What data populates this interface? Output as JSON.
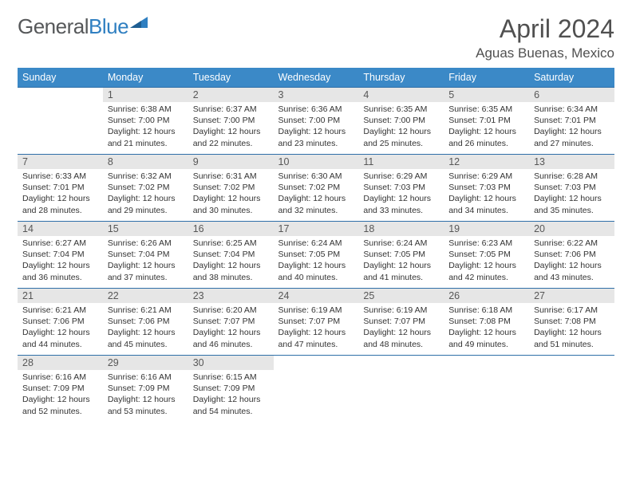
{
  "logo": {
    "text1": "General",
    "text2": "Blue",
    "mark_color": "#2f7fc1",
    "text1_color": "#56585a"
  },
  "title": "April 2024",
  "location": "Aguas Buenas, Mexico",
  "header_bg": "#3b89c7",
  "header_fg": "#ffffff",
  "daynum_bg": "#e6e6e6",
  "border_color": "#2f6fa8",
  "day_names": [
    "Sunday",
    "Monday",
    "Tuesday",
    "Wednesday",
    "Thursday",
    "Friday",
    "Saturday"
  ],
  "weeks": [
    [
      null,
      {
        "n": "1",
        "sr": "6:38 AM",
        "ss": "7:00 PM",
        "dl": "12 hours and 21 minutes."
      },
      {
        "n": "2",
        "sr": "6:37 AM",
        "ss": "7:00 PM",
        "dl": "12 hours and 22 minutes."
      },
      {
        "n": "3",
        "sr": "6:36 AM",
        "ss": "7:00 PM",
        "dl": "12 hours and 23 minutes."
      },
      {
        "n": "4",
        "sr": "6:35 AM",
        "ss": "7:00 PM",
        "dl": "12 hours and 25 minutes."
      },
      {
        "n": "5",
        "sr": "6:35 AM",
        "ss": "7:01 PM",
        "dl": "12 hours and 26 minutes."
      },
      {
        "n": "6",
        "sr": "6:34 AM",
        "ss": "7:01 PM",
        "dl": "12 hours and 27 minutes."
      }
    ],
    [
      {
        "n": "7",
        "sr": "6:33 AM",
        "ss": "7:01 PM",
        "dl": "12 hours and 28 minutes."
      },
      {
        "n": "8",
        "sr": "6:32 AM",
        "ss": "7:02 PM",
        "dl": "12 hours and 29 minutes."
      },
      {
        "n": "9",
        "sr": "6:31 AM",
        "ss": "7:02 PM",
        "dl": "12 hours and 30 minutes."
      },
      {
        "n": "10",
        "sr": "6:30 AM",
        "ss": "7:02 PM",
        "dl": "12 hours and 32 minutes."
      },
      {
        "n": "11",
        "sr": "6:29 AM",
        "ss": "7:03 PM",
        "dl": "12 hours and 33 minutes."
      },
      {
        "n": "12",
        "sr": "6:29 AM",
        "ss": "7:03 PM",
        "dl": "12 hours and 34 minutes."
      },
      {
        "n": "13",
        "sr": "6:28 AM",
        "ss": "7:03 PM",
        "dl": "12 hours and 35 minutes."
      }
    ],
    [
      {
        "n": "14",
        "sr": "6:27 AM",
        "ss": "7:04 PM",
        "dl": "12 hours and 36 minutes."
      },
      {
        "n": "15",
        "sr": "6:26 AM",
        "ss": "7:04 PM",
        "dl": "12 hours and 37 minutes."
      },
      {
        "n": "16",
        "sr": "6:25 AM",
        "ss": "7:04 PM",
        "dl": "12 hours and 38 minutes."
      },
      {
        "n": "17",
        "sr": "6:24 AM",
        "ss": "7:05 PM",
        "dl": "12 hours and 40 minutes."
      },
      {
        "n": "18",
        "sr": "6:24 AM",
        "ss": "7:05 PM",
        "dl": "12 hours and 41 minutes."
      },
      {
        "n": "19",
        "sr": "6:23 AM",
        "ss": "7:05 PM",
        "dl": "12 hours and 42 minutes."
      },
      {
        "n": "20",
        "sr": "6:22 AM",
        "ss": "7:06 PM",
        "dl": "12 hours and 43 minutes."
      }
    ],
    [
      {
        "n": "21",
        "sr": "6:21 AM",
        "ss": "7:06 PM",
        "dl": "12 hours and 44 minutes."
      },
      {
        "n": "22",
        "sr": "6:21 AM",
        "ss": "7:06 PM",
        "dl": "12 hours and 45 minutes."
      },
      {
        "n": "23",
        "sr": "6:20 AM",
        "ss": "7:07 PM",
        "dl": "12 hours and 46 minutes."
      },
      {
        "n": "24",
        "sr": "6:19 AM",
        "ss": "7:07 PM",
        "dl": "12 hours and 47 minutes."
      },
      {
        "n": "25",
        "sr": "6:19 AM",
        "ss": "7:07 PM",
        "dl": "12 hours and 48 minutes."
      },
      {
        "n": "26",
        "sr": "6:18 AM",
        "ss": "7:08 PM",
        "dl": "12 hours and 49 minutes."
      },
      {
        "n": "27",
        "sr": "6:17 AM",
        "ss": "7:08 PM",
        "dl": "12 hours and 51 minutes."
      }
    ],
    [
      {
        "n": "28",
        "sr": "6:16 AM",
        "ss": "7:09 PM",
        "dl": "12 hours and 52 minutes."
      },
      {
        "n": "29",
        "sr": "6:16 AM",
        "ss": "7:09 PM",
        "dl": "12 hours and 53 minutes."
      },
      {
        "n": "30",
        "sr": "6:15 AM",
        "ss": "7:09 PM",
        "dl": "12 hours and 54 minutes."
      },
      null,
      null,
      null,
      null
    ]
  ],
  "labels": {
    "sunrise": "Sunrise:",
    "sunset": "Sunset:",
    "daylight": "Daylight:"
  }
}
